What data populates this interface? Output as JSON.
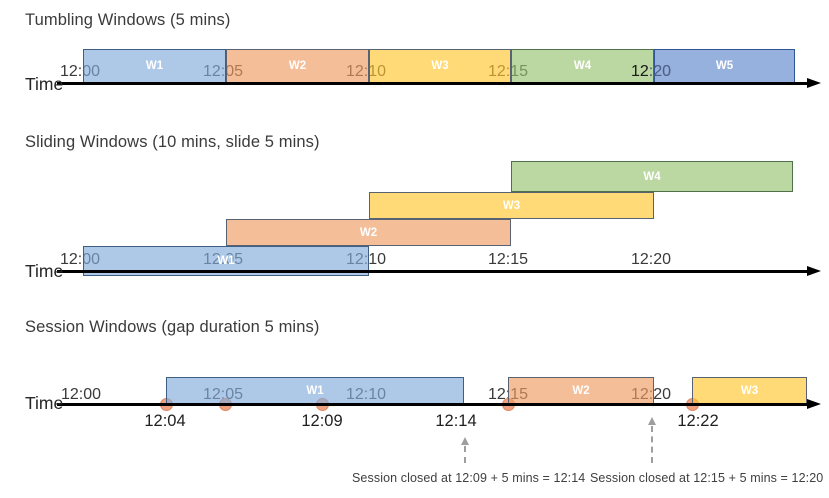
{
  "diagram": {
    "time_axis_label": "Time",
    "axis_ticks": [
      "12:00",
      "12:05",
      "12:10",
      "12:15",
      "12:20"
    ],
    "sections": [
      {
        "title": "Tumbling Windows (5 mins)",
        "type": "tumbling",
        "windows": [
          {
            "label": "W1",
            "start": "12:00",
            "end": "12:05",
            "color": "blue"
          },
          {
            "label": "W2",
            "start": "12:05",
            "end": "12:10",
            "color": "orange"
          },
          {
            "label": "W3",
            "start": "12:10",
            "end": "12:15",
            "color": "yellow"
          },
          {
            "label": "W4",
            "start": "12:15",
            "end": "12:20",
            "color": "green"
          },
          {
            "label": "W5",
            "start": "12:20",
            "end": "",
            "color": "indigo"
          }
        ]
      },
      {
        "title": "Sliding Windows (10 mins, slide 5 mins)",
        "type": "sliding",
        "windows": [
          {
            "label": "W1",
            "start": "12:00",
            "end": "12:10",
            "color": "blue"
          },
          {
            "label": "W2",
            "start": "12:05",
            "end": "12:15",
            "color": "orange"
          },
          {
            "label": "W3",
            "start": "12:10",
            "end": "12:20",
            "color": "yellow"
          },
          {
            "label": "W4",
            "start": "12:15",
            "end": "",
            "color": "green"
          }
        ]
      },
      {
        "title": "Session Windows (gap duration 5 mins)",
        "type": "session",
        "windows": [
          {
            "label": "W1",
            "start": "12:04",
            "end": "12:14",
            "color": "blue"
          },
          {
            "label": "W2",
            "start": "12:15",
            "end": "12:20",
            "color": "orange"
          },
          {
            "label": "W3",
            "start": "12:22",
            "end": "",
            "color": "yellow"
          }
        ],
        "event_labels": [
          "12:04",
          "12:09",
          "12:14",
          "12:22"
        ],
        "annotations": [
          {
            "text": "Session closed at 12:09 + 5 mins = 12:14"
          },
          {
            "text": "Session closed at 12:15 + 5 mins = 12:20"
          }
        ]
      }
    ],
    "palette": {
      "blue": {
        "fill": "rgba(131,172,220,0.65)",
        "border": "#3e5f82"
      },
      "orange": {
        "fill": "rgba(238,155,97,0.65)",
        "border": "#596273"
      },
      "yellow": {
        "fill": "rgba(255,198,45,0.65)",
        "border": "#596273"
      },
      "green": {
        "fill": "rgba(152,195,112,0.65)",
        "border": "#50704a"
      },
      "indigo": {
        "fill": "rgba(95,135,204,0.65)",
        "border": "#2f5597"
      },
      "event_dot": {
        "fill": "#efa183",
        "border": "#e0875e"
      },
      "axis": "#000000",
      "dashed_arrow": "#9e9e9e"
    }
  }
}
